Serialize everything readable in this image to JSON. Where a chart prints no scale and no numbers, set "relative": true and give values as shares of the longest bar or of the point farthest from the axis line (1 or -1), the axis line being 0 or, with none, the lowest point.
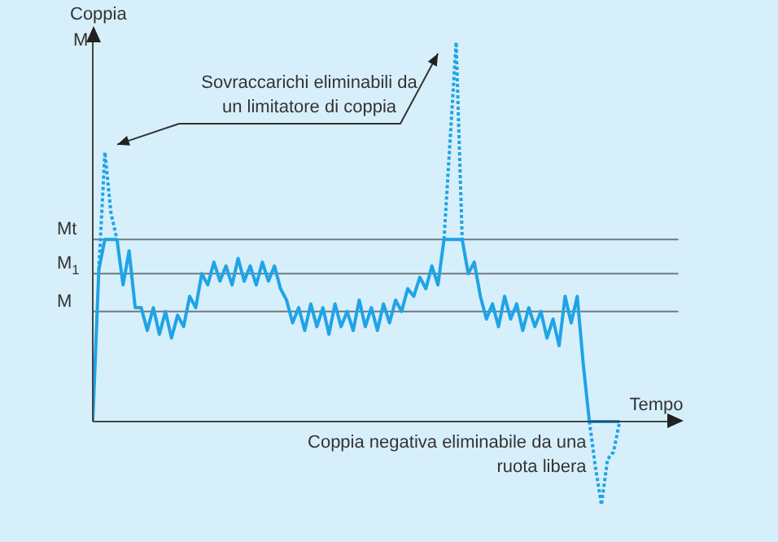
{
  "chart_data": {
    "type": "line",
    "relative": true,
    "ylabel": "Coppia",
    "xlabel": "Tempo",
    "legend": false,
    "marker": "none",
    "categories": [
      null,
      null,
      null,
      null,
      null,
      null,
      null,
      null,
      null,
      null,
      null,
      null,
      null,
      null,
      null,
      null,
      null,
      null,
      null,
      null,
      null,
      null,
      null,
      null,
      null,
      null,
      null,
      null,
      null,
      null,
      null,
      null,
      null,
      null,
      null,
      null,
      null,
      null,
      null,
      null,
      null,
      null,
      null,
      null,
      null,
      null,
      null,
      null,
      null,
      null,
      null,
      null,
      null,
      null,
      null,
      null,
      null,
      null,
      null,
      null,
      null,
      null,
      null,
      null,
      null,
      null,
      null,
      null,
      null,
      null,
      null,
      null,
      null,
      null,
      null,
      null,
      null,
      null,
      null,
      null,
      null,
      null,
      null,
      null,
      null,
      null,
      null,
      null
    ],
    "series": [
      {
        "color": "#1fa4e6",
        "line_style": "solid",
        "values": [
          0,
          0.4,
          0.48,
          0.48,
          0.48,
          0.36,
          0.45,
          0.3,
          0.3,
          0.24,
          0.3,
          0.23,
          0.29,
          0.22,
          0.28,
          0.25,
          0.33,
          0.3,
          0.39,
          0.36,
          0.42,
          0.37,
          0.41,
          0.36,
          0.43,
          0.37,
          0.41,
          0.36,
          0.42,
          0.37,
          0.41,
          0.35,
          0.32,
          0.26,
          0.3,
          0.24,
          0.31,
          0.25,
          0.3,
          0.23,
          0.31,
          0.25,
          0.29,
          0.24,
          0.32,
          0.25,
          0.3,
          0.24,
          0.31,
          0.26,
          0.32,
          0.29,
          0.35,
          0.33,
          0.38,
          0.35,
          0.41,
          0.36,
          0.48,
          0.48,
          0.48,
          0.48,
          0.39,
          0.42,
          0.33,
          0.27,
          0.31,
          0.25,
          0.33,
          0.27,
          0.31,
          0.24,
          0.3,
          0.25,
          0.29,
          0.22,
          0.27,
          0.2,
          0.33,
          0.26,
          0.33,
          0.15,
          0,
          0,
          0,
          0,
          0,
          0
        ]
      },
      {
        "color": "#1fa4e6",
        "line_style": "dotted",
        "values": [
          null,
          0.4,
          0.71,
          0.55,
          0.48,
          null,
          null,
          null,
          null,
          null,
          null,
          null,
          null,
          null,
          null,
          null,
          null,
          null,
          null,
          null,
          null,
          null,
          null,
          null,
          null,
          null,
          null,
          null,
          null,
          null,
          null,
          null,
          null,
          null,
          null,
          null,
          null,
          null,
          null,
          null,
          null,
          null,
          null,
          null,
          null,
          null,
          null,
          null,
          null,
          null,
          null,
          null,
          null,
          null,
          null,
          null,
          null,
          null,
          0.48,
          0.74,
          1.0,
          0.48,
          null,
          null,
          null,
          null,
          null,
          null,
          null,
          null,
          null,
          null,
          null,
          null,
          null,
          null,
          null,
          null,
          null,
          null,
          null,
          null,
          0,
          -0.12,
          -0.22,
          -0.1,
          -0.08,
          0
        ]
      }
    ],
    "ref_lines": [
      {
        "axis": "y",
        "value": 0.48,
        "label": "Mt",
        "color": "#6f7a80"
      },
      {
        "axis": "y",
        "value": 0.39,
        "label": "M$_{1}$",
        "color": "#6f7a80"
      },
      {
        "axis": "y",
        "value": 0.29,
        "label": "M",
        "color": "#6f7a80"
      }
    ],
    "annotations": [
      "Sovraccarichi eliminabili da un limitatore di coppia",
      "Coppia negativa eliminabile da una ruota libera",
      "M"
    ]
  }
}
